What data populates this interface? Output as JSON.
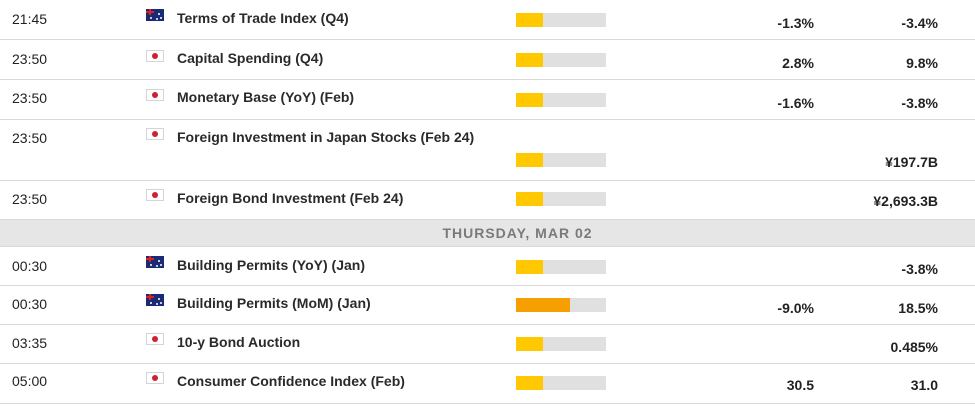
{
  "colors": {
    "impact_low": "#ffc800",
    "impact_medium": "#f5a000",
    "impact_track": "#e0e0e0",
    "day_header_bg": "#e6e6e6"
  },
  "rows": [
    {
      "kind": "event",
      "time": "21:45",
      "flag": "australia-flag-icon",
      "event": "Terms of Trade Index (Q4)",
      "impact": "low",
      "impact_level": 0.3,
      "actual": "-1.3%",
      "forecast": "-3.4%"
    },
    {
      "kind": "event",
      "time": "23:50",
      "flag": "japan-flag-icon",
      "event": "Capital Spending (Q4)",
      "impact": "low",
      "impact_level": 0.3,
      "actual": "2.8%",
      "forecast": "9.8%"
    },
    {
      "kind": "event",
      "time": "23:50",
      "flag": "japan-flag-icon",
      "event": "Monetary Base (YoY) (Feb)",
      "impact": "low",
      "impact_level": 0.3,
      "actual": "-1.6%",
      "forecast": "-3.8%"
    },
    {
      "kind": "event",
      "time": "23:50",
      "flag": "japan-flag-icon",
      "event": "Foreign Investment in Japan Stocks (Feb 24)",
      "impact": "low",
      "impact_level": 0.3,
      "actual": "",
      "forecast": "¥197.7B",
      "tall": true
    },
    {
      "kind": "event",
      "time": "23:50",
      "flag": "japan-flag-icon",
      "event": "Foreign Bond Investment (Feb 24)",
      "impact": "low",
      "impact_level": 0.3,
      "actual": "",
      "forecast": "¥2,693.3B"
    },
    {
      "kind": "day",
      "label": "THURSDAY, MAR 02"
    },
    {
      "kind": "event",
      "time": "00:30",
      "flag": "australia-flag-icon",
      "event": "Building Permits (YoY) (Jan)",
      "impact": "low",
      "impact_level": 0.3,
      "actual": "",
      "forecast": "-3.8%"
    },
    {
      "kind": "event",
      "time": "00:30",
      "flag": "australia-flag-icon",
      "event": "Building Permits (MoM) (Jan)",
      "impact": "medium",
      "impact_level": 0.6,
      "actual": "-9.0%",
      "forecast": "18.5%"
    },
    {
      "kind": "event",
      "time": "03:35",
      "flag": "japan-flag-icon",
      "event": "10-y Bond Auction",
      "impact": "low",
      "impact_level": 0.3,
      "actual": "",
      "forecast": "0.485%"
    },
    {
      "kind": "event",
      "time": "05:00",
      "flag": "japan-flag-icon",
      "event": "Consumer Confidence Index (Feb)",
      "impact": "low",
      "impact_level": 0.3,
      "actual": "30.5",
      "forecast": "31.0"
    }
  ]
}
